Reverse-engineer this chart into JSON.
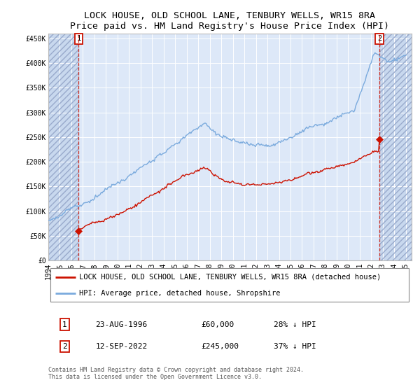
{
  "title": "LOCK HOUSE, OLD SCHOOL LANE, TENBURY WELLS, WR15 8RA",
  "subtitle": "Price paid vs. HM Land Registry's House Price Index (HPI)",
  "ylabel_ticks": [
    "£0",
    "£50K",
    "£100K",
    "£150K",
    "£200K",
    "£250K",
    "£300K",
    "£350K",
    "£400K",
    "£450K"
  ],
  "ytick_values": [
    0,
    50000,
    100000,
    150000,
    200000,
    250000,
    300000,
    350000,
    400000,
    450000
  ],
  "ylim": [
    0,
    460000
  ],
  "xlim_start": 1994.0,
  "xlim_end": 2025.5,
  "xticks": [
    1994,
    1995,
    1996,
    1997,
    1998,
    1999,
    2000,
    2001,
    2002,
    2003,
    2004,
    2005,
    2006,
    2007,
    2008,
    2009,
    2010,
    2011,
    2012,
    2013,
    2014,
    2015,
    2016,
    2017,
    2018,
    2019,
    2020,
    2021,
    2022,
    2023,
    2024,
    2025
  ],
  "hpi_color": "#7aaadd",
  "price_color": "#cc1100",
  "plot_bg_color": "#dde8f8",
  "hatch_bg_color": "#c8d8ee",
  "grid_color": "#ffffff",
  "legend_label_price": "LOCK HOUSE, OLD SCHOOL LANE, TENBURY WELLS, WR15 8RA (detached house)",
  "legend_label_hpi": "HPI: Average price, detached house, Shropshire",
  "sale1_label": "1",
  "sale1_date": "23-AUG-1996",
  "sale1_price": "£60,000",
  "sale1_hpi": "28% ↓ HPI",
  "sale1_year": 1996.64,
  "sale1_value": 60000,
  "sale2_label": "2",
  "sale2_date": "12-SEP-2022",
  "sale2_price": "£245,000",
  "sale2_hpi": "37% ↓ HPI",
  "sale2_year": 2022.71,
  "sale2_value": 245000,
  "footer": "Contains HM Land Registry data © Crown copyright and database right 2024.\nThis data is licensed under the Open Government Licence v3.0.",
  "title_fontsize": 9.5,
  "tick_fontsize": 7,
  "legend_fontsize": 7.5,
  "table_fontsize": 8,
  "footer_fontsize": 6
}
